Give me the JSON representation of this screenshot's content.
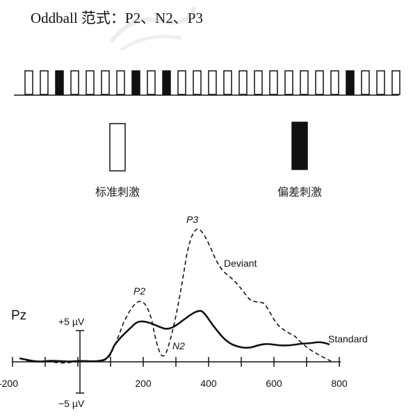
{
  "title": "Oddball 范式：P2、N2、P3",
  "stimulus_sequence": [
    "s",
    "s",
    "d",
    "s",
    "s",
    "s",
    "s",
    "d",
    "s",
    "d",
    "s",
    "s",
    "s",
    "s",
    "s",
    "s",
    "s",
    "s",
    "s",
    "s",
    "s",
    "d",
    "s",
    "s",
    "s"
  ],
  "legend": {
    "standard_label": "标准刺激",
    "deviant_label": "偏差刺激"
  },
  "erp_plot": {
    "electrode_label": "Pz",
    "scale_plus": "+5 µV",
    "scale_minus": "−5 µV",
    "x_ticks": [
      "-200",
      "200",
      "400",
      "600",
      "800"
    ],
    "series": [
      {
        "name": "Deviant",
        "style": "dashed"
      },
      {
        "name": "Standard",
        "style": "solid"
      }
    ],
    "peaks": [
      "P2",
      "N2",
      "P3"
    ]
  },
  "colors": {
    "ink": "#111111",
    "background": "#ffffff"
  }
}
